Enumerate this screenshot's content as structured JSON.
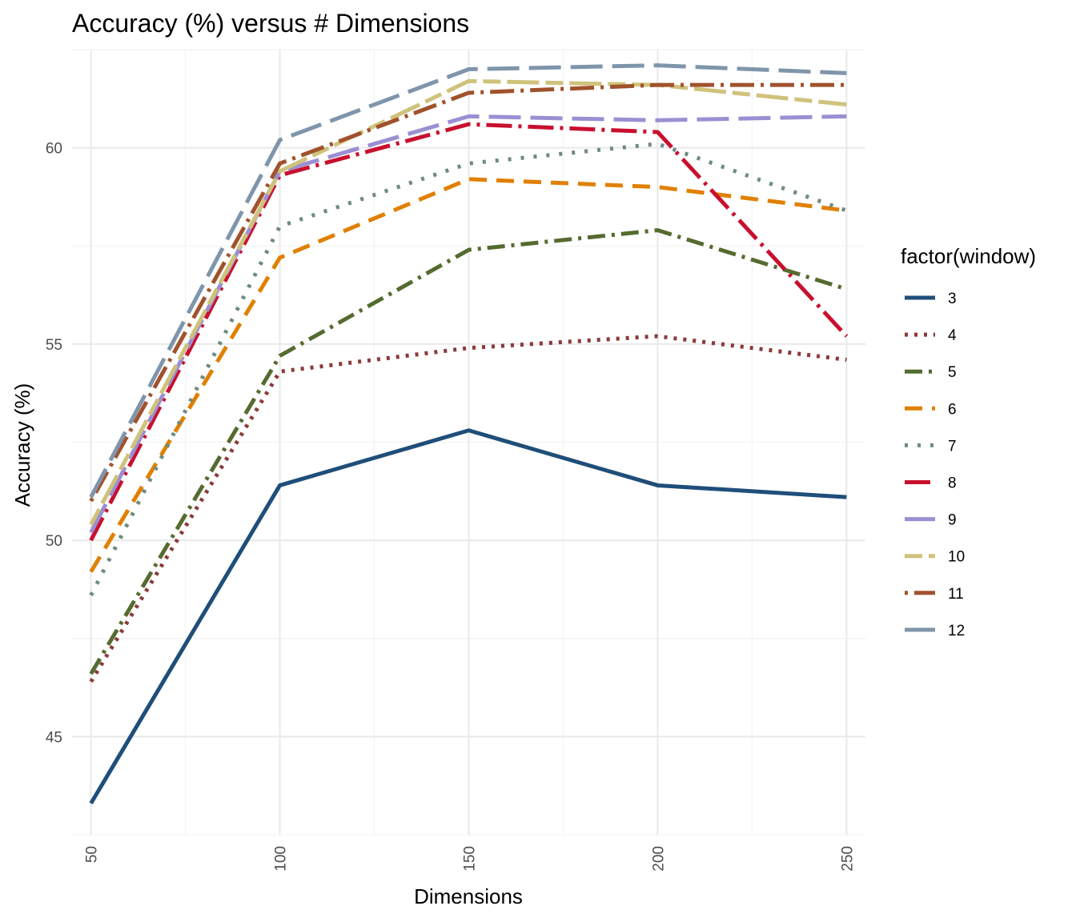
{
  "chart_data": {
    "type": "line",
    "title": "Accuracy (%) versus # Dimensions",
    "xlabel": "Dimensions",
    "ylabel": "Accuracy (%)",
    "x": [
      50,
      100,
      150,
      200,
      250
    ],
    "x_ticks": [
      50,
      100,
      150,
      200,
      250
    ],
    "y_ticks": [
      45,
      50,
      55,
      60
    ],
    "xlim": [
      45,
      255
    ],
    "ylim": [
      42.5,
      62.5
    ],
    "grid": true,
    "legend": {
      "title": "factor(window)",
      "placement": "right"
    },
    "series": [
      {
        "name": "3",
        "color": "#1f4e79",
        "dash": "solid",
        "values": [
          43.3,
          51.4,
          52.8,
          51.4,
          51.1
        ]
      },
      {
        "name": "4",
        "color": "#8b3a3a",
        "dash": "dotted",
        "values": [
          46.4,
          54.3,
          54.9,
          55.2,
          54.6
        ]
      },
      {
        "name": "5",
        "color": "#556b2f",
        "dash": "dotdash",
        "values": [
          46.6,
          54.7,
          57.4,
          57.9,
          56.4
        ]
      },
      {
        "name": "6",
        "color": "#e08000",
        "dash": "dashed",
        "values": [
          49.2,
          57.2,
          59.2,
          59.0,
          58.4
        ]
      },
      {
        "name": "7",
        "color": "#6e8b80",
        "dash": "dotted-wide",
        "values": [
          48.6,
          58.0,
          59.6,
          60.1,
          58.4
        ]
      },
      {
        "name": "8",
        "color": "#c8102e",
        "dash": "dotdash-long",
        "values": [
          50.0,
          59.3,
          60.6,
          60.4,
          55.2
        ]
      },
      {
        "name": "9",
        "color": "#9b8fd3",
        "dash": "longdash",
        "values": [
          50.2,
          59.4,
          60.8,
          60.7,
          60.8
        ]
      },
      {
        "name": "10",
        "color": "#cfc27c",
        "dash": "twodash",
        "values": [
          50.4,
          59.4,
          61.7,
          61.6,
          61.1
        ]
      },
      {
        "name": "11",
        "color": "#a0522d",
        "dash": "dot-longdash",
        "values": [
          51.0,
          59.6,
          61.4,
          61.6,
          61.6
        ]
      },
      {
        "name": "12",
        "color": "#7f95ab",
        "dash": "longdash",
        "values": [
          51.1,
          60.2,
          62.0,
          62.1,
          61.9
        ]
      }
    ]
  }
}
